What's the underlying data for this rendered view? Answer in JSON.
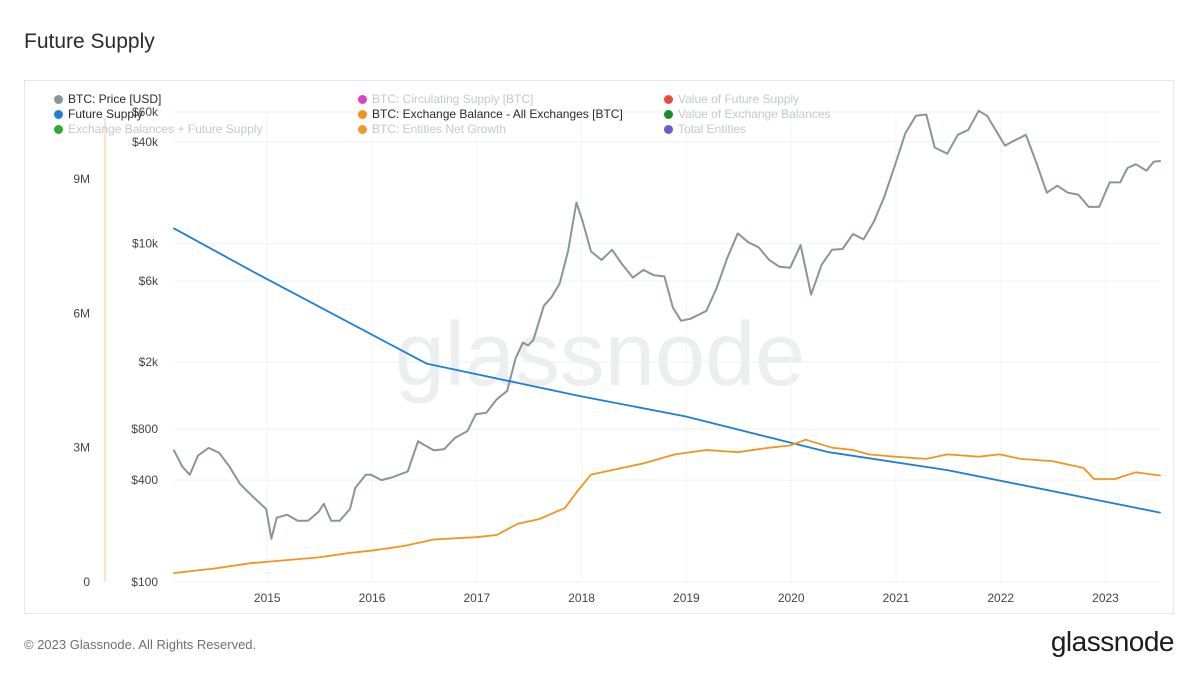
{
  "page": {
    "title": "Future Supply",
    "footer": "© 2023 Glassnode. All Rights Reserved.",
    "brand": "glassnode",
    "watermark": "glassnode"
  },
  "legend": [
    {
      "label": "BTC: Price [USD]",
      "color": "#8a9597",
      "active": true
    },
    {
      "label": "BTC: Circulating Supply [BTC]",
      "color": "#e040c8",
      "active": false
    },
    {
      "label": "Value of Future Supply",
      "color": "#e84a3c",
      "active": false
    },
    {
      "label": "Future Supply",
      "color": "#1e7fd4",
      "active": true
    },
    {
      "label": "BTC: Exchange Balance - All Exchanges [BTC]",
      "color": "#f0961e",
      "active": true
    },
    {
      "label": "Value of Exchange Balances",
      "color": "#1a8a2a",
      "active": false
    },
    {
      "label": "Exchange Balances + Future Supply",
      "color": "#2eaa3a",
      "active": false
    },
    {
      "label": "BTC: Entities Net Growth",
      "color": "#f09a28",
      "active": false
    },
    {
      "label": "Total Entities",
      "color": "#6a5acd",
      "active": false
    }
  ],
  "chart_data": {
    "type": "line",
    "title": "Future Supply",
    "legend_position": "top-left",
    "grid": true,
    "x_axis": {
      "range": [
        2014.12,
        2023.53
      ],
      "ticks": [
        "2015",
        "2016",
        "2017",
        "2018",
        "2019",
        "2020",
        "2021",
        "2022",
        "2023"
      ]
    },
    "y_axis_left": {
      "range": [
        0,
        10500000
      ],
      "ticks": [
        "0",
        "3M",
        "6M",
        "9M"
      ]
    },
    "y_axis_right": {
      "scale": "log",
      "range": [
        100,
        60000
      ],
      "ticks": [
        "$100",
        "$400",
        "$800",
        "$2k",
        "$6k",
        "$10k",
        "$40k",
        "$60k"
      ]
    },
    "series": [
      {
        "name": "BTC: Price [USD]",
        "axis": "price-log",
        "color": "#8a9597",
        "points": [
          [
            2014.12,
            600
          ],
          [
            2014.2,
            480
          ],
          [
            2014.27,
            430
          ],
          [
            2014.35,
            560
          ],
          [
            2014.45,
            620
          ],
          [
            2014.55,
            580
          ],
          [
            2014.65,
            480
          ],
          [
            2014.75,
            380
          ],
          [
            2014.85,
            330
          ],
          [
            2014.92,
            300
          ],
          [
            2015.0,
            270
          ],
          [
            2015.05,
            180
          ],
          [
            2015.1,
            240
          ],
          [
            2015.2,
            250
          ],
          [
            2015.3,
            230
          ],
          [
            2015.4,
            230
          ],
          [
            2015.5,
            260
          ],
          [
            2015.55,
            290
          ],
          [
            2015.62,
            230
          ],
          [
            2015.7,
            230
          ],
          [
            2015.8,
            270
          ],
          [
            2015.85,
            360
          ],
          [
            2015.95,
            430
          ],
          [
            2016.0,
            430
          ],
          [
            2016.1,
            400
          ],
          [
            2016.2,
            415
          ],
          [
            2016.35,
            450
          ],
          [
            2016.45,
            680
          ],
          [
            2016.5,
            650
          ],
          [
            2016.6,
            600
          ],
          [
            2016.7,
            610
          ],
          [
            2016.8,
            710
          ],
          [
            2016.92,
            780
          ],
          [
            2017.0,
            980
          ],
          [
            2017.1,
            1000
          ],
          [
            2017.2,
            1200
          ],
          [
            2017.3,
            1350
          ],
          [
            2017.38,
            2100
          ],
          [
            2017.45,
            2600
          ],
          [
            2017.5,
            2500
          ],
          [
            2017.55,
            2700
          ],
          [
            2017.65,
            4300
          ],
          [
            2017.72,
            4800
          ],
          [
            2017.8,
            5800
          ],
          [
            2017.88,
            9000
          ],
          [
            2017.96,
            17500
          ],
          [
            2018.02,
            13500
          ],
          [
            2018.1,
            9000
          ],
          [
            2018.2,
            8000
          ],
          [
            2018.3,
            9200
          ],
          [
            2018.4,
            7500
          ],
          [
            2018.5,
            6300
          ],
          [
            2018.6,
            7000
          ],
          [
            2018.7,
            6500
          ],
          [
            2018.8,
            6400
          ],
          [
            2018.88,
            4200
          ],
          [
            2018.96,
            3500
          ],
          [
            2019.05,
            3600
          ],
          [
            2019.2,
            4000
          ],
          [
            2019.3,
            5500
          ],
          [
            2019.4,
            8200
          ],
          [
            2019.5,
            11500
          ],
          [
            2019.6,
            10200
          ],
          [
            2019.7,
            9500
          ],
          [
            2019.8,
            8000
          ],
          [
            2019.9,
            7300
          ],
          [
            2020.0,
            7200
          ],
          [
            2020.1,
            9800
          ],
          [
            2020.2,
            5000
          ],
          [
            2020.3,
            7500
          ],
          [
            2020.4,
            9200
          ],
          [
            2020.5,
            9300
          ],
          [
            2020.6,
            11400
          ],
          [
            2020.7,
            10600
          ],
          [
            2020.8,
            13500
          ],
          [
            2020.9,
            19000
          ],
          [
            2021.0,
            29000
          ],
          [
            2021.1,
            45000
          ],
          [
            2021.2,
            57000
          ],
          [
            2021.3,
            58000
          ],
          [
            2021.38,
            37000
          ],
          [
            2021.5,
            34000
          ],
          [
            2021.6,
            44000
          ],
          [
            2021.7,
            47000
          ],
          [
            2021.8,
            61000
          ],
          [
            2021.88,
            57000
          ],
          [
            2021.96,
            47000
          ],
          [
            2022.05,
            38000
          ],
          [
            2022.15,
            41000
          ],
          [
            2022.25,
            44000
          ],
          [
            2022.35,
            30000
          ],
          [
            2022.45,
            20000
          ],
          [
            2022.55,
            22000
          ],
          [
            2022.65,
            20000
          ],
          [
            2022.75,
            19500
          ],
          [
            2022.85,
            16500
          ],
          [
            2022.95,
            16500
          ],
          [
            2023.05,
            23000
          ],
          [
            2023.15,
            23000
          ],
          [
            2023.22,
            28000
          ],
          [
            2023.3,
            29500
          ],
          [
            2023.4,
            27000
          ],
          [
            2023.47,
            30500
          ],
          [
            2023.53,
            30800
          ]
        ]
      },
      {
        "name": "Future Supply",
        "axis": "supply",
        "color": "#1e7fd4",
        "points": [
          [
            2014.12,
            7900000
          ],
          [
            2014.9,
            6900000
          ],
          [
            2016.53,
            4880000
          ],
          [
            2018.0,
            4150000
          ],
          [
            2019.0,
            3700000
          ],
          [
            2020.37,
            2900000
          ],
          [
            2021.5,
            2500000
          ],
          [
            2023.53,
            1550000
          ]
        ]
      },
      {
        "name": "BTC: Exchange Balance - All Exchanges [BTC]",
        "axis": "supply",
        "color": "#f0961e",
        "points": [
          [
            2014.12,
            200000
          ],
          [
            2014.5,
            300000
          ],
          [
            2014.85,
            420000
          ],
          [
            2015.0,
            450000
          ],
          [
            2015.5,
            550000
          ],
          [
            2015.8,
            650000
          ],
          [
            2016.0,
            700000
          ],
          [
            2016.3,
            800000
          ],
          [
            2016.6,
            950000
          ],
          [
            2017.0,
            1000000
          ],
          [
            2017.2,
            1050000
          ],
          [
            2017.4,
            1300000
          ],
          [
            2017.6,
            1400000
          ],
          [
            2017.85,
            1650000
          ],
          [
            2017.96,
            2000000
          ],
          [
            2018.1,
            2400000
          ],
          [
            2018.3,
            2500000
          ],
          [
            2018.6,
            2650000
          ],
          [
            2018.9,
            2850000
          ],
          [
            2019.2,
            2950000
          ],
          [
            2019.5,
            2900000
          ],
          [
            2019.8,
            3000000
          ],
          [
            2020.0,
            3050000
          ],
          [
            2020.15,
            3180000
          ],
          [
            2020.4,
            3000000
          ],
          [
            2020.6,
            2950000
          ],
          [
            2020.75,
            2850000
          ],
          [
            2021.0,
            2800000
          ],
          [
            2021.3,
            2750000
          ],
          [
            2021.5,
            2850000
          ],
          [
            2021.8,
            2800000
          ],
          [
            2022.0,
            2850000
          ],
          [
            2022.2,
            2750000
          ],
          [
            2022.5,
            2700000
          ],
          [
            2022.8,
            2550000
          ],
          [
            2022.9,
            2300000
          ],
          [
            2023.1,
            2300000
          ],
          [
            2023.3,
            2450000
          ],
          [
            2023.53,
            2380000
          ]
        ]
      }
    ]
  }
}
